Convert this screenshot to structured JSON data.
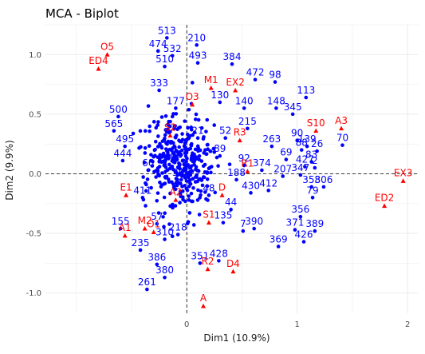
{
  "chart_data": {
    "type": "scatter",
    "title": "MCA - Biplot",
    "xlabel": "Dim1 (10.9%)",
    "ylabel": "Dim2 (9.9%)",
    "xlim": [
      -1.28,
      2.1
    ],
    "ylim": [
      -1.17,
      1.25
    ],
    "x_ticks": [
      0,
      1,
      2
    ],
    "y_ticks": [
      -1.0,
      -0.5,
      0.0,
      0.5,
      1.0
    ],
    "x_tick_labels": [
      "0",
      "1",
      "2"
    ],
    "y_tick_labels": [
      "-1.0",
      "-0.5",
      "0.0",
      "0.5",
      "1.0"
    ],
    "grid": true,
    "reference_lines": {
      "x": 0,
      "y": 0,
      "style": "dashed"
    },
    "colors": {
      "individuals": "#0000ff",
      "variables": "#ff0000",
      "grid": "#ebebeb",
      "reference": "#000000"
    },
    "series": [
      {
        "name": "individuals",
        "marker": "circle",
        "points": [
          {
            "label": "513",
            "x": -0.18,
            "y": 1.14
          },
          {
            "label": "210",
            "x": 0.09,
            "y": 1.08
          },
          {
            "label": "532",
            "x": -0.13,
            "y": 0.99
          },
          {
            "label": "98",
            "x": 0.8,
            "y": 0.77
          },
          {
            "label": "113",
            "x": 1.08,
            "y": 0.64
          },
          {
            "label": "356",
            "x": 1.03,
            "y": -0.36
          },
          {
            "label": "371",
            "x": 0.98,
            "y": -0.47
          },
          {
            "label": "369",
            "x": 0.83,
            "y": -0.61
          },
          {
            "label": "426",
            "x": 1.06,
            "y": -0.57
          },
          {
            "label": "389",
            "x": 1.16,
            "y": -0.48
          },
          {
            "label": "351",
            "x": 0.12,
            "y": -0.75
          },
          {
            "label": "428",
            "x": 0.29,
            "y": -0.73
          },
          {
            "label": "261",
            "x": -0.36,
            "y": -0.97
          },
          {
            "label": "135",
            "x": 0.33,
            "y": -0.41
          },
          {
            "label": "139",
            "x": 1.09,
            "y": 0.23
          },
          {
            "label": "79",
            "x": 1.14,
            "y": -0.2
          },
          {
            "label": "70",
            "x": 1.41,
            "y": 0.24
          },
          {
            "label": "69",
            "x": 0.9,
            "y": 0.12
          },
          {
            "label": "263",
            "x": 0.77,
            "y": 0.23
          },
          {
            "label": "148",
            "x": 0.81,
            "y": 0.55
          },
          {
            "label": "412",
            "x": 0.74,
            "y": -0.14
          },
          {
            "label": "358",
            "x": 1.13,
            "y": -0.11
          },
          {
            "label": "444",
            "x": -0.58,
            "y": 0.11
          },
          {
            "label": "495",
            "x": -0.56,
            "y": 0.23
          },
          {
            "label": "44",
            "x": 0.4,
            "y": -0.3
          },
          {
            "label": "7",
            "x": 0.51,
            "y": -0.48
          },
          {
            "label": "390",
            "x": 0.61,
            "y": -0.46
          },
          {
            "label": "386",
            "x": -0.27,
            "y": -0.76
          },
          {
            "label": "380",
            "x": -0.2,
            "y": -0.87
          },
          {
            "label": "472",
            "x": 0.62,
            "y": 0.79
          },
          {
            "label": "345",
            "x": 0.96,
            "y": 0.5
          },
          {
            "label": "427",
            "x": 1.07,
            "y": 0.06
          },
          {
            "label": "88",
            "x": 1.04,
            "y": 0.2
          },
          {
            "label": "26",
            "x": 1.18,
            "y": 0.19
          },
          {
            "label": "90",
            "x": 1.0,
            "y": 0.28
          },
          {
            "label": "83",
            "x": 1.13,
            "y": 0.1
          },
          {
            "label": "347",
            "x": 1.03,
            "y": -0.01
          },
          {
            "label": "207",
            "x": 0.87,
            "y": -0.02
          },
          {
            "label": "306",
            "x": 1.24,
            "y": -0.11
          },
          {
            "label": "2",
            "x": 1.16,
            "y": 0.05
          },
          {
            "label": "92",
            "x": 0.52,
            "y": 0.07
          },
          {
            "label": "430",
            "x": 0.58,
            "y": -0.16
          },
          {
            "label": "374",
            "x": 0.68,
            "y": 0.03
          },
          {
            "label": "215",
            "x": 0.55,
            "y": 0.38
          },
          {
            "label": "140",
            "x": 0.52,
            "y": 0.55
          },
          {
            "label": "384",
            "x": 0.41,
            "y": 0.92
          },
          {
            "label": "493",
            "x": 0.1,
            "y": 0.93
          },
          {
            "label": "474",
            "x": -0.26,
            "y": 1.03
          },
          {
            "label": "510",
            "x": -0.2,
            "y": 0.9
          },
          {
            "label": "500",
            "x": -0.62,
            "y": 0.48
          },
          {
            "label": "565",
            "x": -0.66,
            "y": 0.36
          },
          {
            "label": "155",
            "x": -0.6,
            "y": -0.46
          },
          {
            "label": "235",
            "x": -0.42,
            "y": -0.64
          },
          {
            "label": "310",
            "x": -0.2,
            "y": -0.55
          },
          {
            "label": "218",
            "x": -0.08,
            "y": -0.51
          },
          {
            "label": "57",
            "x": -0.27,
            "y": -0.42
          },
          {
            "label": "21",
            "x": 0.1,
            "y": 0.3
          },
          {
            "label": "130",
            "x": 0.3,
            "y": 0.6
          },
          {
            "label": "201",
            "x": -0.12,
            "y": 0.1
          },
          {
            "label": "66",
            "x": -0.35,
            "y": 0.03
          },
          {
            "label": "188",
            "x": 0.45,
            "y": -0.05
          },
          {
            "label": "305",
            "x": -0.05,
            "y": -0.05
          },
          {
            "label": "48",
            "x": 0.2,
            "y": -0.18
          },
          {
            "label": "411",
            "x": -0.4,
            "y": -0.2
          },
          {
            "label": "89",
            "x": 0.3,
            "y": 0.15
          },
          {
            "label": "177",
            "x": -0.1,
            "y": 0.55
          },
          {
            "label": "52",
            "x": 0.35,
            "y": 0.3
          },
          {
            "label": "333",
            "x": -0.25,
            "y": 0.7
          }
        ]
      },
      {
        "name": "variables",
        "marker": "triangle",
        "points": [
          {
            "label": "O5",
            "x": -0.72,
            "y": 1.0
          },
          {
            "label": "ED4",
            "x": -0.8,
            "y": 0.88
          },
          {
            "label": "EX3",
            "x": 1.96,
            "y": -0.06
          },
          {
            "label": "ED2",
            "x": 1.79,
            "y": -0.27
          },
          {
            "label": "S1",
            "x": 0.2,
            "y": -0.41
          },
          {
            "label": "A",
            "x": 0.15,
            "y": -1.11
          },
          {
            "label": "R2",
            "x": 0.19,
            "y": -0.8
          },
          {
            "label": "D4",
            "x": 0.42,
            "y": -0.82
          },
          {
            "label": "S10",
            "x": 1.17,
            "y": 0.36
          },
          {
            "label": "A3",
            "x": 1.4,
            "y": 0.38
          },
          {
            "label": "EX2",
            "x": 0.44,
            "y": 0.7
          },
          {
            "label": "A1",
            "x": -0.56,
            "y": -0.52
          },
          {
            "label": "M2",
            "x": -0.38,
            "y": -0.46
          },
          {
            "label": "O1",
            "x": -0.3,
            "y": -0.49
          },
          {
            "label": "D",
            "x": 0.32,
            "y": -0.18
          },
          {
            "label": "R1",
            "x": 0.55,
            "y": 0.02
          },
          {
            "label": "E1",
            "x": -0.55,
            "y": -0.18
          },
          {
            "label": "M1",
            "x": 0.22,
            "y": 0.72
          },
          {
            "label": "O3",
            "x": 0.05,
            "y": 0.58
          },
          {
            "label": "S2",
            "x": -0.15,
            "y": 0.32
          },
          {
            "label": "R3",
            "x": 0.48,
            "y": 0.28
          },
          {
            "label": "A2",
            "x": -0.1,
            "y": -0.22
          }
        ]
      }
    ]
  }
}
